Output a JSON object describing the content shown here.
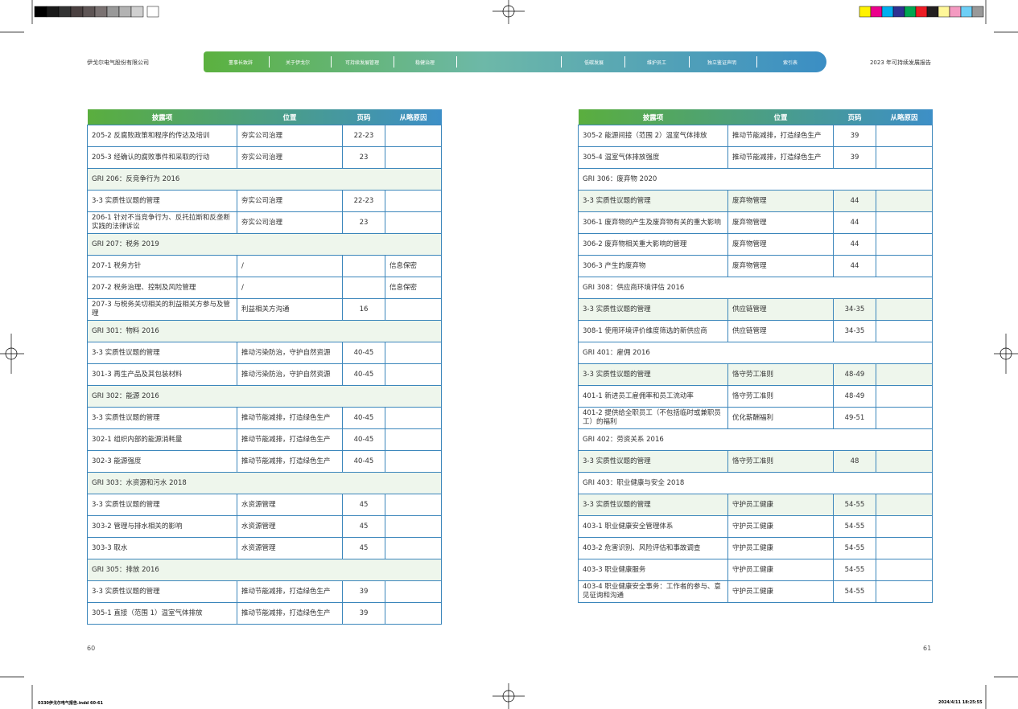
{
  "header": {
    "company": "伊戈尔电气股份有限公司",
    "report": "2023 年可持续发展报告",
    "nav": [
      "董事长致辞",
      "关于伊戈尔",
      "可持续发展管理",
      "稳健治理",
      "低碳发展",
      "维护员工",
      "独立鉴证声明",
      "索引表"
    ]
  },
  "tables": [
    {
      "columns": [
        "披露项",
        "位置",
        "页码",
        "从略原因"
      ],
      "rows": [
        {
          "item": "205-2 反腐败政策和程序的传达及培训",
          "position": "夯实公司治理",
          "pages": "22-23"
        },
        {
          "item": "205-3 经确认的腐败事件和采取的行动",
          "position": "夯实公司治理",
          "pages": 23
        },
        {
          "section": "GRI 206：反竞争行为 2016"
        },
        {
          "item": "3-3 实质性议题的管理",
          "position": "夯实公司治理",
          "pages": "22-23"
        },
        {
          "item": "206-1 针对不当竞争行为、反托拉斯和反垄断实践的法律诉讼",
          "position": "夯实公司治理",
          "pages": 23
        },
        {
          "section": "GRI 207：税务 2019"
        },
        {
          "item": "207-1 税务方针",
          "position": "/",
          "reason": "信息保密"
        },
        {
          "item": "207-2 税务治理、控制及风险管理",
          "position": "/",
          "reason": "信息保密"
        },
        {
          "item": "207-3 与税务关切相关的利益相关方参与及管理",
          "position": "利益相关方沟通",
          "pages": 16
        },
        {
          "section": "GRI 301：物料 2016"
        },
        {
          "item": "3-3 实质性议题的管理",
          "position": "推动污染防治，守护自然资源",
          "pages": "40-45"
        },
        {
          "item": "301-3 再生产品及其包装材料",
          "position": "推动污染防治，守护自然资源",
          "pages": "40-45"
        },
        {
          "section": "GRI 302：能源 2016"
        },
        {
          "item": "3-3 实质性议题的管理",
          "position": "推动节能减排，打造绿色生产",
          "pages": "40-45"
        },
        {
          "item": "302-1 组织内部的能源消耗量",
          "position": "推动节能减排，打造绿色生产",
          "pages": "40-45"
        },
        {
          "item": "302-3 能源强度",
          "position": "推动节能减排，打造绿色生产",
          "pages": "40-45"
        },
        {
          "section": "GRI 303：水资源和污水 2018"
        },
        {
          "item": "3-3 实质性议题的管理",
          "position": "水资源管理",
          "pages": 45
        },
        {
          "item": "303-2 管理与排水相关的影响",
          "position": "水资源管理",
          "pages": 45
        },
        {
          "item": "303-3 取水",
          "position": "水资源管理",
          "pages": 45
        },
        {
          "section": "GRI 305：排放 2016"
        },
        {
          "item": "3-3 实质性议题的管理",
          "position": "推动节能减排，打造绿色生产",
          "pages": 39
        },
        {
          "item": "305-1 直接（范围 1）温室气体排放",
          "position": "推动节能减排，打造绿色生产",
          "pages": 39
        }
      ]
    },
    {
      "columns": [
        "披露项",
        "位置",
        "页码",
        "从略原因"
      ],
      "rows": [
        {
          "item": "305-2 能源间接（范围 2）温室气体排放",
          "position": "推动节能减排，打造绿色生产",
          "pages": 39
        },
        {
          "item": "305-4 温室气体排放强度",
          "position": "推动节能减排，打造绿色生产",
          "pages": 39
        },
        {
          "section": "GRI 306：废弃物 2020"
        },
        {
          "item": "3-3 实质性议题的管理",
          "position": "废弃物管理",
          "pages": 44
        },
        {
          "item": "306-1 废弃物的产生及废弃物有关的重大影响",
          "position": "废弃物管理",
          "pages": 44
        },
        {
          "item": "306-2 废弃物相关重大影响的管理",
          "position": "废弃物管理",
          "pages": 44
        },
        {
          "item": "306-3 产生的废弃物",
          "position": "废弃物管理",
          "pages": 44
        },
        {
          "section": "GRI 308：供应商环境评估 2016"
        },
        {
          "item": "3-3 实质性议题的管理",
          "position": "供应链管理",
          "pages": "34-35"
        },
        {
          "item": "308-1 使用环境评价维度筛选的新供应商",
          "position": "供应链管理",
          "pages": "34-35"
        },
        {
          "section": "GRI 401：雇佣 2016"
        },
        {
          "item": "3-3 实质性议题的管理",
          "position": "恪守劳工准则",
          "pages": "48-49"
        },
        {
          "item": "401-1 新进员工雇佣率和员工流动率",
          "position": "恪守劳工准则",
          "pages": "48-49"
        },
        {
          "item": "401-2 提供给全职员工（不包括临时或兼职员工）的福利",
          "position": "优化薪酬福利",
          "pages": "49-51"
        },
        {
          "section": "GRI 402：劳资关系 2016"
        },
        {
          "item": "3-3 实质性议题的管理",
          "position": "恪守劳工准则",
          "pages": 48
        },
        {
          "section": "GRI 403：职业健康与安全 2018"
        },
        {
          "item": "3-3 实质性议题的管理",
          "position": "守护员工健康",
          "pages": "54-55"
        },
        {
          "item": "403-1 职业健康安全管理体系",
          "position": "守护员工健康",
          "pages": "54-55"
        },
        {
          "item": "403-2 危害识别、风险评估和事故调查",
          "position": "守护员工健康",
          "pages": "54-55"
        },
        {
          "item": "403-3 职业健康服务",
          "position": "守护员工健康",
          "pages": "54-55"
        },
        {
          "item": "403-4 职业健康安全事务：工作者的参与、意见征询和沟通",
          "position": "守护员工健康",
          "pages": "54-55"
        }
      ]
    }
  ],
  "page_numbers": [
    60,
    61
  ],
  "footer": {
    "file": "0330伊戈尔电气报告.indd 60-61",
    "timestamp": "2024/4/11 18:25:55"
  }
}
